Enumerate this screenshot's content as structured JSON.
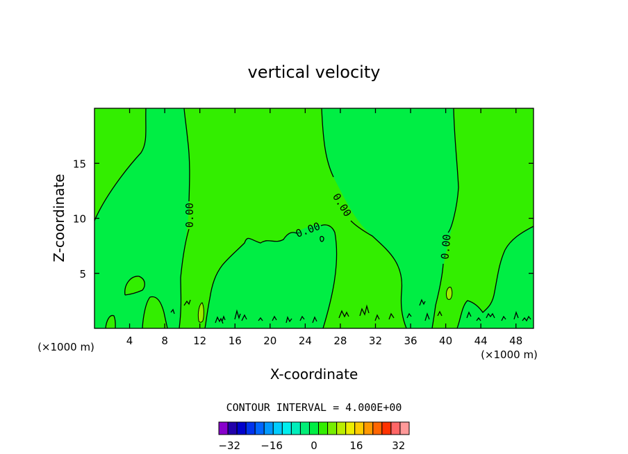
{
  "chart_data": {
    "type": "heatmap",
    "title": "vertical velocity",
    "xlabel": "X-coordinate",
    "ylabel": "Z-coordinate",
    "x_unit_left": "(×1000 m)",
    "x_unit_right": "(×1000 m)",
    "xlim": [
      0,
      50
    ],
    "ylim": [
      0,
      20
    ],
    "x_ticks": [
      4,
      8,
      12,
      16,
      20,
      24,
      28,
      32,
      36,
      40,
      44,
      48
    ],
    "y_ticks": [
      5,
      10,
      15
    ],
    "contour_interval_text": "CONTOUR INTERVAL = 4.000E+00",
    "contour_labels": [
      "0.00",
      "0.00",
      "0.00",
      "0.00"
    ],
    "regions": [
      {
        "name": "w_negative",
        "range": [
          -4,
          0
        ],
        "color": "#00ee44"
      },
      {
        "name": "w_positive",
        "range": [
          0,
          4
        ],
        "color": "#33ee00"
      },
      {
        "name": "w_strong_positive",
        "range": [
          4,
          8
        ],
        "color": "#99ee00"
      }
    ],
    "colorbar": {
      "min": -36,
      "max": 36,
      "step": 4,
      "colors": [
        "#8800cc",
        "#2200aa",
        "#0000cc",
        "#0033ee",
        "#0066ff",
        "#0099ff",
        "#00ccff",
        "#00eeee",
        "#00eebb",
        "#00ee77",
        "#00ee44",
        "#33ee00",
        "#77ee00",
        "#bbee00",
        "#eeee00",
        "#ffcc00",
        "#ff9900",
        "#ff6600",
        "#ff3300",
        "#ff6666",
        "#ff9999"
      ],
      "tick_labels": [
        "−32",
        "−16",
        "0",
        "16",
        "32"
      ],
      "tick_values": [
        -32,
        -16,
        0,
        16,
        32
      ]
    }
  }
}
